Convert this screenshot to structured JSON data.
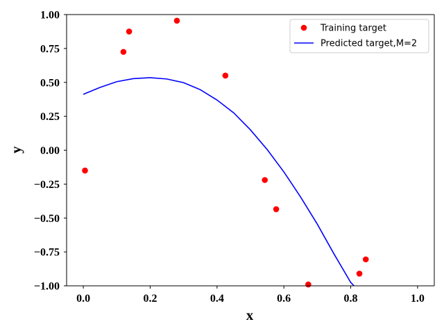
{
  "chart_data": {
    "type": "scatter",
    "title": "",
    "xlabel": "x",
    "ylabel": "y",
    "xlim": [
      -0.05,
      1.05
    ],
    "ylim": [
      -1.0,
      1.0
    ],
    "xticks": [
      0.0,
      0.2,
      0.4,
      0.6,
      0.8,
      1.0
    ],
    "xtick_labels": [
      "0.0",
      "0.2",
      "0.4",
      "0.6",
      "0.8",
      "1.0"
    ],
    "yticks": [
      1.0,
      0.75,
      0.5,
      0.25,
      0.0,
      -0.25,
      -0.5,
      -0.75,
      -1.0
    ],
    "ytick_labels": [
      "1.00",
      "0.75",
      "0.50",
      "0.25",
      "0.00",
      "−0.25",
      "−0.50",
      "−0.75",
      "−1.00"
    ],
    "grid": false,
    "legend_position": "top-right",
    "series": [
      {
        "name": "Training target",
        "kind": "points",
        "color": "#ff0000",
        "x": [
          0.005,
          0.12,
          0.137,
          0.28,
          0.425,
          0.543,
          0.577,
          0.673,
          0.826,
          0.845
        ],
        "y": [
          -0.15,
          0.725,
          0.875,
          0.955,
          0.55,
          -0.22,
          -0.435,
          -0.99,
          -0.91,
          -0.805
        ]
      },
      {
        "name": "Predicted target,M=2",
        "kind": "curve",
        "color": "#0000ff",
        "x": [
          0.0,
          0.05,
          0.1,
          0.15,
          0.2,
          0.25,
          0.3,
          0.35,
          0.4,
          0.45,
          0.5,
          0.55,
          0.6,
          0.65,
          0.7,
          0.75,
          0.8,
          0.81
        ],
        "y": [
          0.412,
          0.463,
          0.505,
          0.528,
          0.535,
          0.525,
          0.498,
          0.446,
          0.37,
          0.275,
          0.15,
          0.005,
          -0.16,
          -0.345,
          -0.545,
          -0.765,
          -0.975,
          -1.0
        ]
      }
    ]
  }
}
